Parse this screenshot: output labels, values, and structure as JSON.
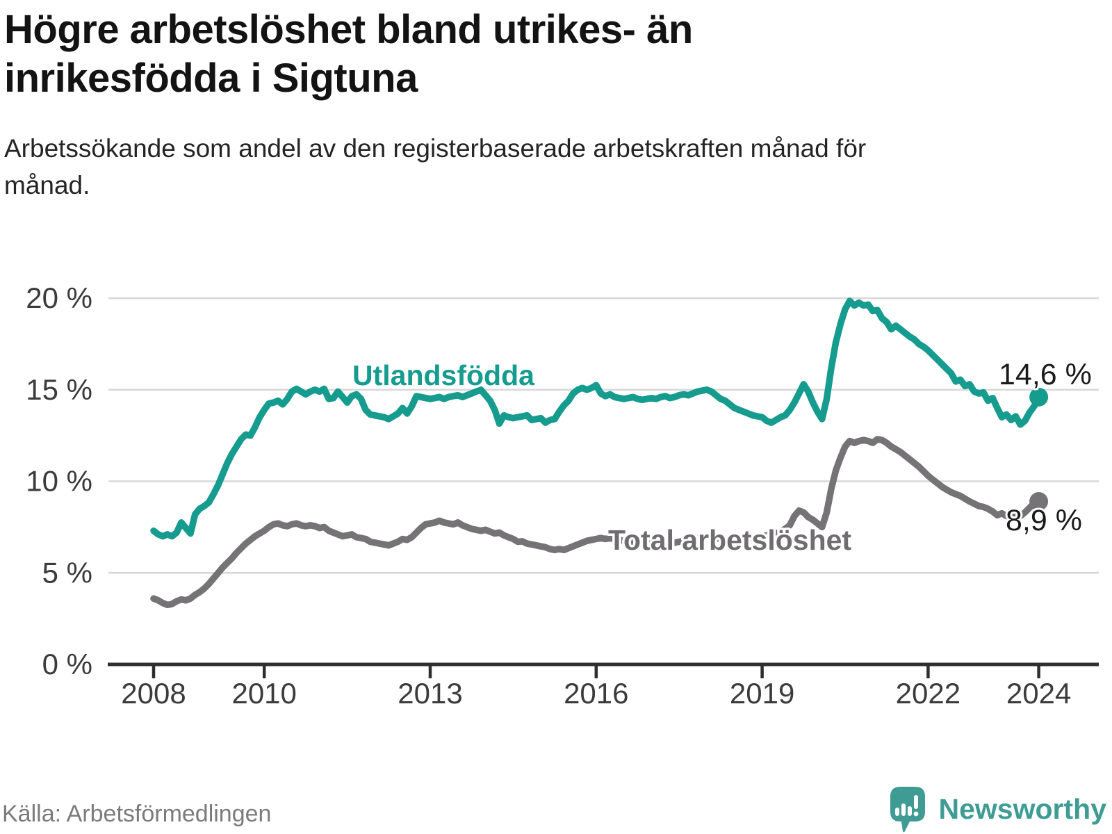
{
  "header": {
    "title": "Högre arbetslöshet bland utrikes- än inrikesfödda i Sigtuna",
    "subtitle": "Arbetssökande som andel av den registerbaserade arbetskraften månad för månad."
  },
  "footer": {
    "source": "Källa: Arbetsförmedlingen",
    "brand_name": "Newsworthy",
    "brand_logo_icon": "speech-bubble-bar-chart-icon",
    "brand_color": "#3f9c94"
  },
  "colors": {
    "background": "#ffffff",
    "gridline": "#d9d9d9",
    "axis": "#2e2e2e",
    "tick_label": "#3b3b3b",
    "value_label": "#1a1a1a",
    "series_utlandsfodda": "#169b8f",
    "series_total": "#757375",
    "series_total_label": "#6f6d6f"
  },
  "chart_data": {
    "type": "line",
    "title": "Högre arbetslöshet bland utrikes- än inrikesfödda i Sigtuna",
    "xlabel": "",
    "ylabel": "",
    "x_unit": "year-month",
    "x_start_year": 2008,
    "x_start_month": 1,
    "x_step_months": 1,
    "x_end_year": 2024,
    "x_end_month": 1,
    "ylim": [
      0,
      21.2
    ],
    "xlim": [
      2007.2,
      2025.2
    ],
    "grid": "horizontal",
    "legend_position": "inline-labels",
    "yticks": [
      {
        "value": 0,
        "label": "0 %"
      },
      {
        "value": 5,
        "label": "5 %"
      },
      {
        "value": 10,
        "label": "10 %"
      },
      {
        "value": 15,
        "label": "15 %"
      },
      {
        "value": 20,
        "label": "20 %"
      }
    ],
    "xticks": [
      {
        "value": 2008,
        "label": "2008"
      },
      {
        "value": 2010,
        "label": "2010"
      },
      {
        "value": 2013,
        "label": "2013"
      },
      {
        "value": 2016,
        "label": "2016"
      },
      {
        "value": 2019,
        "label": "2019"
      },
      {
        "value": 2022,
        "label": "2022"
      },
      {
        "value": 2024,
        "label": "2024"
      }
    ],
    "series": [
      {
        "name": "Utlandsfödda",
        "color": "#169b8f",
        "end_label": "14,6 %",
        "end_value": 14.6,
        "values": [
          7.3,
          7.1,
          7.0,
          7.1,
          7.0,
          7.2,
          7.75,
          7.45,
          7.15,
          8.2,
          8.5,
          8.65,
          8.85,
          9.3,
          9.8,
          10.4,
          11.0,
          11.5,
          11.9,
          12.3,
          12.55,
          12.5,
          12.95,
          13.5,
          13.9,
          14.25,
          14.3,
          14.4,
          14.2,
          14.5,
          14.9,
          15.05,
          14.9,
          14.75,
          14.9,
          15.0,
          14.9,
          15.05,
          14.5,
          14.55,
          14.9,
          14.6,
          14.3,
          14.65,
          14.75,
          14.5,
          13.9,
          13.65,
          13.6,
          13.55,
          13.5,
          13.4,
          13.55,
          13.7,
          14.0,
          13.7,
          14.1,
          14.65,
          14.6,
          14.55,
          14.5,
          14.55,
          14.6,
          14.5,
          14.6,
          14.65,
          14.7,
          14.6,
          14.7,
          14.8,
          14.9,
          15.0,
          14.7,
          14.4,
          13.9,
          13.15,
          13.6,
          13.5,
          13.45,
          13.5,
          13.55,
          13.6,
          13.35,
          13.4,
          13.45,
          13.2,
          13.35,
          13.4,
          13.8,
          14.15,
          14.4,
          14.8,
          15.0,
          15.1,
          15.0,
          15.1,
          15.25,
          14.8,
          14.65,
          14.75,
          14.6,
          14.55,
          14.5,
          14.55,
          14.6,
          14.5,
          14.45,
          14.5,
          14.55,
          14.5,
          14.6,
          14.65,
          14.55,
          14.6,
          14.7,
          14.75,
          14.7,
          14.8,
          14.9,
          14.95,
          15.0,
          14.9,
          14.7,
          14.5,
          14.4,
          14.2,
          14.0,
          13.9,
          13.8,
          13.7,
          13.6,
          13.55,
          13.5,
          13.3,
          13.2,
          13.35,
          13.5,
          13.6,
          13.9,
          14.3,
          14.8,
          15.3,
          14.9,
          14.3,
          13.8,
          13.4,
          14.5,
          16.2,
          17.6,
          18.6,
          19.4,
          19.85,
          19.6,
          19.75,
          19.6,
          19.65,
          19.3,
          19.35,
          18.9,
          18.7,
          18.3,
          18.5,
          18.3,
          18.1,
          17.9,
          17.75,
          17.5,
          17.35,
          17.15,
          16.9,
          16.65,
          16.4,
          16.15,
          15.9,
          15.45,
          15.55,
          15.2,
          15.3,
          14.9,
          14.8,
          14.85,
          14.4,
          14.55,
          14.0,
          13.5,
          13.65,
          13.35,
          13.55,
          13.1,
          13.3,
          13.75,
          14.1,
          14.6
        ]
      },
      {
        "name": "Total arbetslöshet",
        "color": "#757375",
        "end_label": "8,9 %",
        "end_value": 8.9,
        "values": [
          3.6,
          3.5,
          3.35,
          3.25,
          3.3,
          3.45,
          3.55,
          3.5,
          3.6,
          3.8,
          3.95,
          4.15,
          4.4,
          4.7,
          5.0,
          5.3,
          5.55,
          5.8,
          6.1,
          6.35,
          6.6,
          6.8,
          7.0,
          7.15,
          7.3,
          7.5,
          7.65,
          7.7,
          7.6,
          7.55,
          7.65,
          7.7,
          7.6,
          7.55,
          7.6,
          7.55,
          7.45,
          7.5,
          7.3,
          7.2,
          7.1,
          7.0,
          7.05,
          7.1,
          6.95,
          6.9,
          6.85,
          6.7,
          6.65,
          6.6,
          6.55,
          6.5,
          6.6,
          6.7,
          6.85,
          6.8,
          6.95,
          7.2,
          7.45,
          7.65,
          7.7,
          7.75,
          7.85,
          7.75,
          7.7,
          7.65,
          7.75,
          7.6,
          7.5,
          7.4,
          7.35,
          7.3,
          7.35,
          7.25,
          7.15,
          7.2,
          7.05,
          6.95,
          6.85,
          6.7,
          6.72,
          6.6,
          6.55,
          6.5,
          6.45,
          6.4,
          6.3,
          6.25,
          6.3,
          6.25,
          6.35,
          6.45,
          6.55,
          6.65,
          6.75,
          6.8,
          6.85,
          6.9,
          6.85,
          6.9,
          6.85,
          6.8,
          6.75,
          6.7,
          6.65,
          6.6,
          6.6,
          6.6,
          6.6,
          6.55,
          6.6,
          6.65,
          6.6,
          6.65,
          6.7,
          6.75,
          6.8,
          6.85,
          6.9,
          6.95,
          7.0,
          6.95,
          6.9,
          6.85,
          6.8,
          6.75,
          6.8,
          6.85,
          6.8,
          6.85,
          6.9,
          6.95,
          7.0,
          7.05,
          7.1,
          7.15,
          7.25,
          7.4,
          7.6,
          8.1,
          8.4,
          8.3,
          8.05,
          7.9,
          7.7,
          7.5,
          8.3,
          9.6,
          10.6,
          11.3,
          11.9,
          12.2,
          12.1,
          12.2,
          12.25,
          12.2,
          12.1,
          12.3,
          12.25,
          12.1,
          11.9,
          11.75,
          11.6,
          11.4,
          11.2,
          11.0,
          10.8,
          10.55,
          10.3,
          10.1,
          9.9,
          9.7,
          9.55,
          9.4,
          9.3,
          9.2,
          9.05,
          8.9,
          8.78,
          8.65,
          8.6,
          8.5,
          8.35,
          8.15,
          8.25,
          8.1,
          8.2,
          8.0,
          8.1,
          8.3,
          8.55,
          8.8,
          8.9
        ]
      }
    ]
  }
}
